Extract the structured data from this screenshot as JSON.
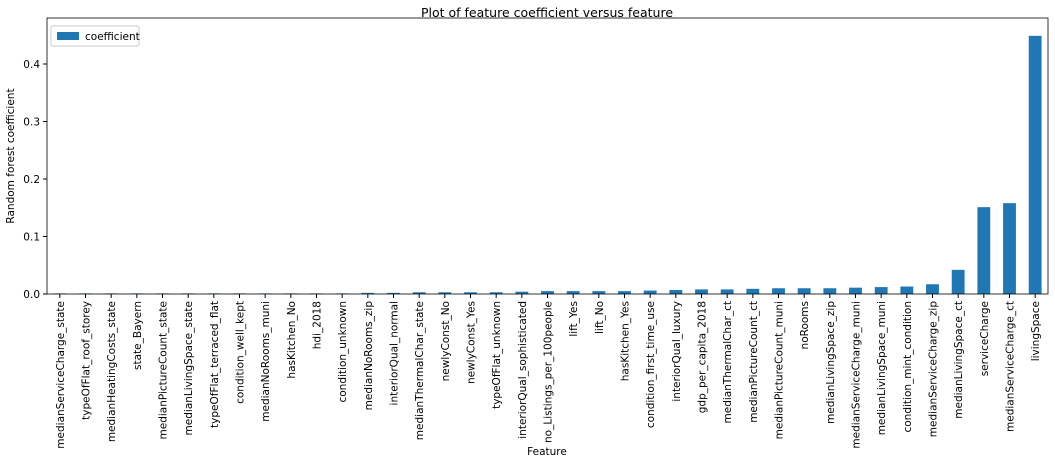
{
  "chart_data": {
    "type": "bar",
    "title": "Plot of feature coefficient versus feature",
    "xlabel": "Feature",
    "ylabel": "Random forest coefficient",
    "categories": [
      "medianServiceCharge_state",
      "typeOfFlat_roof_storey",
      "medianHeatingCosts_state",
      "state_Bayern",
      "medianPictureCount_state",
      "medianLivingSpace_state",
      "typeOfFlat_terraced_flat",
      "condition_well_kept",
      "medianNoRooms_muni",
      "hasKitchen_No",
      "hdi_2018",
      "condition_unknown",
      "medianNoRooms_zip",
      "interiorQual_normal",
      "medianThermalChar_state",
      "newlyConst_No",
      "newlyConst_Yes",
      "typeOfFlat_unknown",
      "interiorQual_sophisticated",
      "no_Listings_per_100people",
      "lift_Yes",
      "lift_No",
      "hasKitchen_Yes",
      "condition_first_time_use",
      "interiorQual_luxury",
      "gdp_per_capita_2018",
      "medianThermalChar_ct",
      "medianPictureCount_ct",
      "medianPictureCount_muni",
      "noRooms",
      "medianLivingSpace_zip",
      "medianServiceCharge_muni",
      "medianLivingSpace_muni",
      "condition_mint_condition",
      "medianServiceCharge_zip",
      "medianLivingSpace_ct",
      "serviceCharge",
      "medianServiceCharge_ct",
      "livingSpace"
    ],
    "series": [
      {
        "name": "coefficient",
        "color": "#1f77b4",
        "values": [
          0.001,
          0.001,
          0.001,
          0.001,
          0.001,
          0.001,
          0.001,
          0.001,
          0.001,
          0.001,
          0.001,
          0.001,
          0.002,
          0.002,
          0.003,
          0.003,
          0.003,
          0.003,
          0.004,
          0.005,
          0.005,
          0.005,
          0.005,
          0.006,
          0.007,
          0.008,
          0.008,
          0.009,
          0.01,
          0.01,
          0.01,
          0.011,
          0.012,
          0.013,
          0.017,
          0.042,
          0.151,
          0.158,
          0.449
        ]
      }
    ],
    "ylim": [
      0,
      0.48
    ],
    "yticks": [
      {
        "value": 0,
        "label": "0.0"
      },
      0.1,
      0.2,
      0.3,
      0.4
    ],
    "grid": false,
    "legend": "upper left"
  }
}
